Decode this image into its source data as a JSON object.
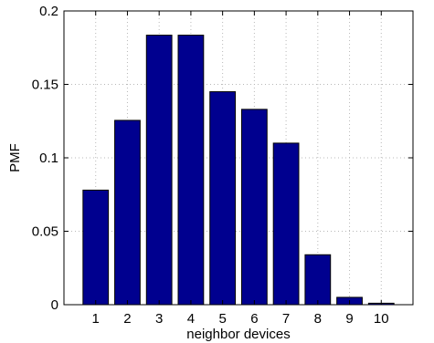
{
  "chart_data": {
    "type": "bar",
    "categories": [
      "1",
      "2",
      "3",
      "4",
      "5",
      "6",
      "7",
      "8",
      "9",
      "10"
    ],
    "values": [
      0.078,
      0.1255,
      0.1835,
      0.1835,
      0.145,
      0.133,
      0.11,
      0.034,
      0.005,
      0.001
    ],
    "xlabel": "neighbor devices",
    "ylabel": "PMF",
    "ylim": [
      0,
      0.2
    ],
    "yticks": [
      0,
      0.05,
      0.1,
      0.15,
      0.2
    ],
    "ytick_labels": [
      "0",
      "0.05",
      "0.1",
      "0.15",
      "0.2"
    ],
    "grid": true,
    "bar_color": "#00008f"
  }
}
